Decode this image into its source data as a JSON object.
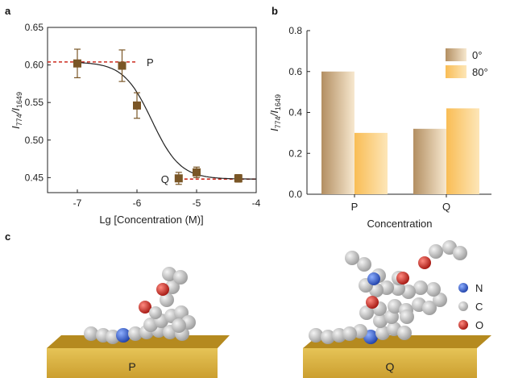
{
  "panel_labels": {
    "a": "a",
    "b": "b",
    "c": "c"
  },
  "chart_data": [
    {
      "type": "scatter",
      "panel": "a",
      "xlabel": "Lg [Concentration (M)]",
      "ylabel_main": "I",
      "ylabel_sub1": "774",
      "ylabel_sep": "/I",
      "ylabel_sub2": "1649",
      "xlim": [
        -7.5,
        -4
      ],
      "ylim": [
        0.43,
        0.65
      ],
      "xticks": [
        -7,
        -6,
        -5,
        -4
      ],
      "xtick_labels": [
        "-7",
        "-6",
        "-5",
        "-4"
      ],
      "yticks": [
        0.45,
        0.5,
        0.55,
        0.6,
        0.65
      ],
      "ytick_labels": [
        "0.45",
        "0.50",
        "0.55",
        "0.60",
        "0.65"
      ],
      "points": [
        {
          "x": -7.0,
          "y": 0.602,
          "err": 0.019
        },
        {
          "x": -6.25,
          "y": 0.599,
          "err": 0.021
        },
        {
          "x": -6.0,
          "y": 0.546,
          "err": 0.017
        },
        {
          "x": -5.3,
          "y": 0.449,
          "err": 0.008
        },
        {
          "x": -5.0,
          "y": 0.457,
          "err": 0.007
        },
        {
          "x": -4.3,
          "y": 0.449,
          "err": 0.005
        }
      ],
      "fit": {
        "top": 0.604,
        "bottom": 0.448,
        "x50": -5.75,
        "slope": 4.2
      },
      "ref_lines": [
        {
          "label": "P",
          "y": 0.604,
          "x0": -7.5,
          "x1": -6.0
        },
        {
          "label": "Q",
          "y": 0.448,
          "x0": -5.3,
          "x1": -4.0
        }
      ],
      "colors": {
        "marker": "#7a5626",
        "ref": "#cc2a1e",
        "fit": "#222222"
      }
    },
    {
      "type": "bar",
      "panel": "b",
      "xlabel": "Concentration",
      "ylabel_main": "I",
      "ylabel_sub1": "774",
      "ylabel_sep": "/I",
      "ylabel_sub2": "1649",
      "categories": [
        "P",
        "Q"
      ],
      "series": [
        {
          "name": "0°",
          "values": [
            0.6,
            0.32
          ],
          "color_dark": "#b38f62",
          "color_light": "#f7e8cf"
        },
        {
          "name": "80°",
          "values": [
            0.3,
            0.42
          ],
          "color_dark": "#f9bd55",
          "color_light": "#fde6b8"
        }
      ],
      "ylim": [
        0,
        0.8
      ],
      "yticks": [
        0,
        0.2,
        0.4,
        0.6,
        0.8
      ],
      "ytick_labels": [
        "0.0",
        "0.2",
        "0.4",
        "0.6",
        "0.8"
      ],
      "legend": "top-right"
    }
  ],
  "molecule_panel": {
    "surface_labels": [
      "P",
      "Q"
    ],
    "legend": [
      {
        "label": "N",
        "color": "#2f5fd4"
      },
      {
        "label": "C",
        "color": "#cfcfcf"
      },
      {
        "label": "O",
        "color": "#d62a22"
      }
    ],
    "surface_color": "#d8b240"
  }
}
